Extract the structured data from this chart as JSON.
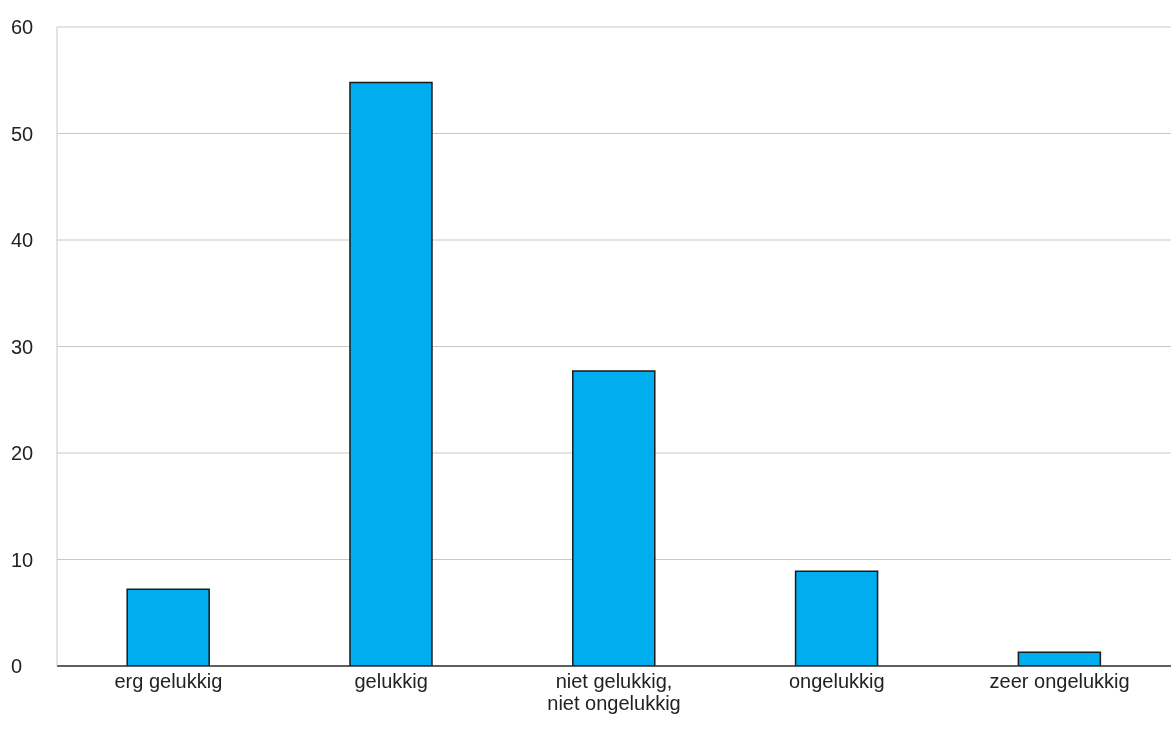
{
  "chart_data": {
    "type": "bar",
    "categories": [
      "erg gelukkig",
      "gelukkig",
      "niet gelukkig, niet ongelukkig",
      "ongelukkig",
      "zeer ongelukkig"
    ],
    "values": [
      7.2,
      54.8,
      27.7,
      8.9,
      1.3
    ],
    "color": "#00adef",
    "ylim": [
      0,
      60
    ],
    "yticks": [
      0,
      10,
      20,
      30,
      40,
      50,
      60
    ],
    "grid": "y",
    "legend": false
  }
}
